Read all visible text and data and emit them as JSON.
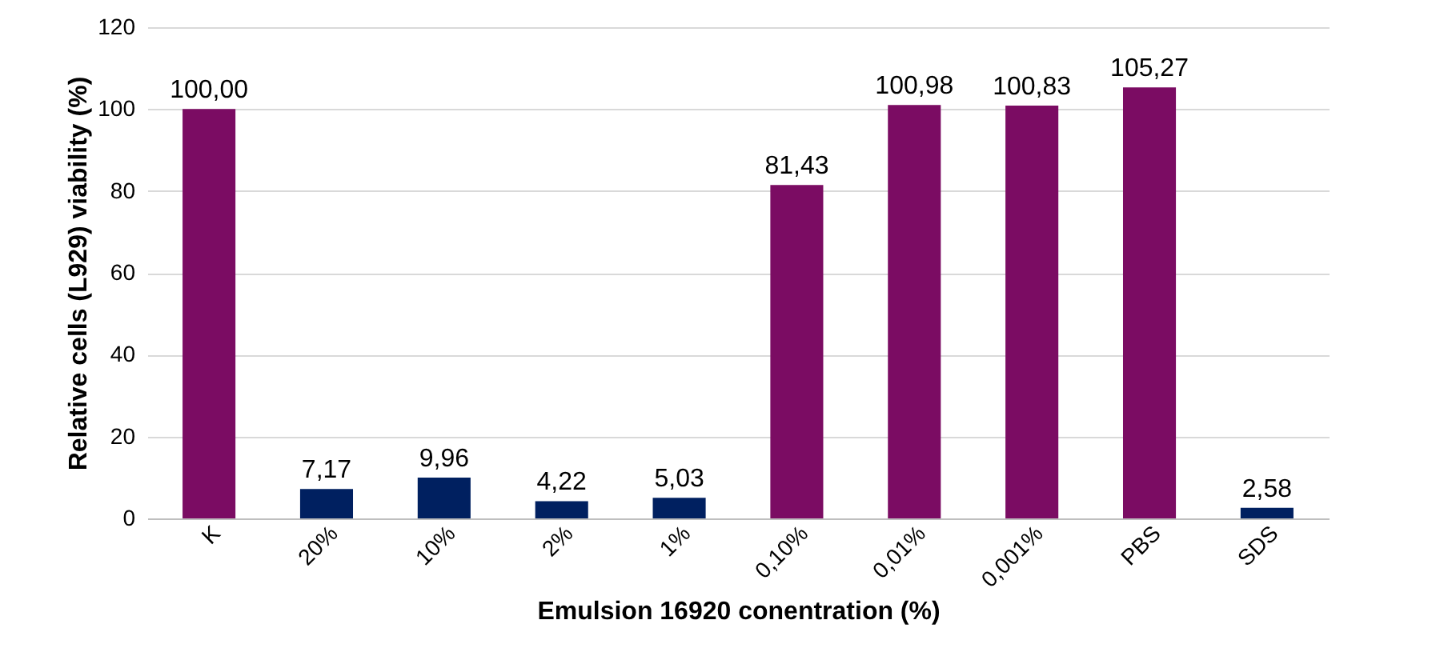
{
  "chart_data": {
    "type": "bar",
    "xlabel": "Emulsion 16920 conentration (%)",
    "ylabel": "Relative cells (L929) viability (%)",
    "categories": [
      "K",
      "20%",
      "10%",
      "2%",
      "1%",
      "0,10%",
      "0,01%",
      "0,001%",
      "PBS",
      "SDS"
    ],
    "values": [
      100.0,
      7.17,
      9.96,
      4.22,
      5.03,
      81.43,
      100.98,
      100.83,
      105.27,
      2.58
    ],
    "value_labels": [
      "100,00",
      "7,17",
      "9,96",
      "4,22",
      "5,03",
      "81,43",
      "100,98",
      "100,83",
      "105,27",
      "2,58"
    ],
    "colors": [
      "#7b0c63",
      "#002060",
      "#002060",
      "#002060",
      "#002060",
      "#7b0c63",
      "#7b0c63",
      "#7b0c63",
      "#7b0c63",
      "#002060"
    ],
    "ylim": [
      0,
      120
    ],
    "yticks": [
      0,
      20,
      40,
      60,
      80,
      100,
      120
    ],
    "grid": "y"
  }
}
